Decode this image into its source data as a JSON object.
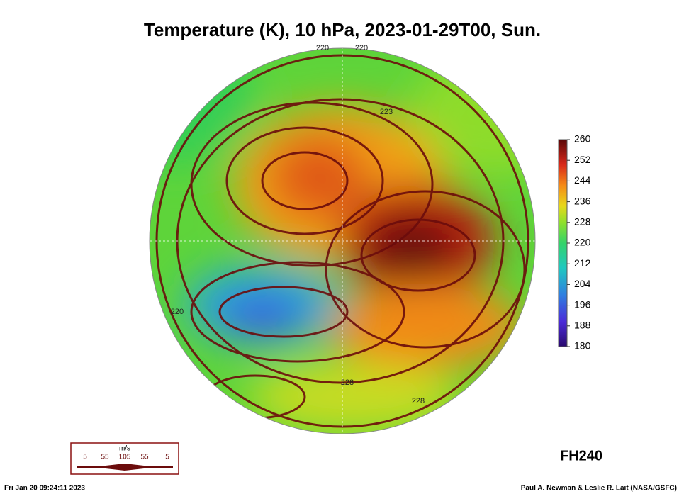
{
  "title": "Temperature (K), 10 hPa, 2023-01-29T00, Sun.",
  "colorbar": {
    "lim": [
      180,
      260
    ],
    "ticks": [
      180,
      188,
      196,
      204,
      212,
      220,
      228,
      236,
      244,
      252,
      260
    ]
  },
  "contour_labels": [
    "220",
    "220",
    "223",
    "228",
    "228",
    "220"
  ],
  "wind_legend": {
    "unit": "m/s",
    "labels": [
      "5",
      "55",
      "105",
      "55",
      "5"
    ]
  },
  "forecast_hour": "FH240",
  "footer": {
    "timestamp": "Fri Jan 20 09:24:11 2023",
    "credit": "Paul A. Newman & Leslie R. Lait (NASA/GSFC)"
  }
}
